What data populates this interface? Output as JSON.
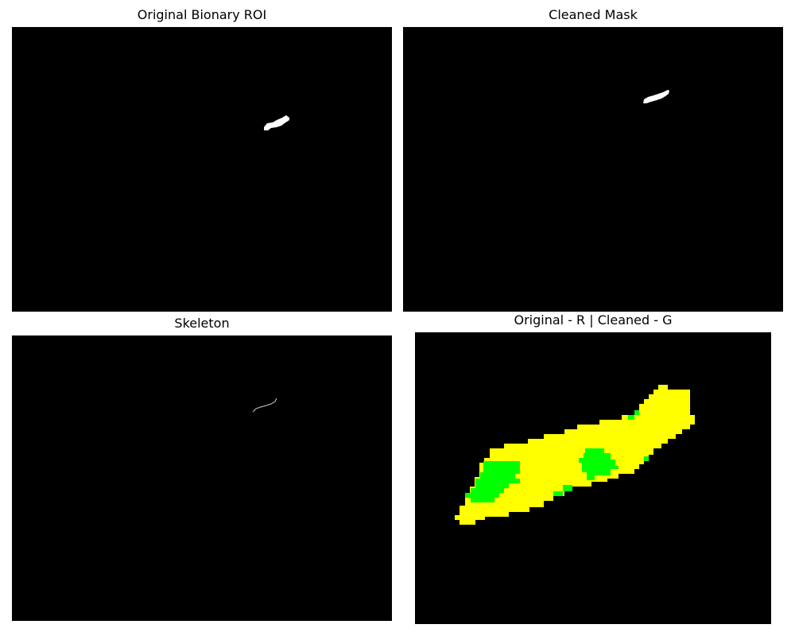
{
  "panels": {
    "original": {
      "title": "Original Bionary ROI"
    },
    "cleaned": {
      "title": "Cleaned Mask"
    },
    "skeleton": {
      "title": "Skeleton"
    },
    "overlay": {
      "title": "Original - R | Cleaned - G"
    }
  },
  "colors": {
    "background": "#000000",
    "mask": "#ffffff",
    "overlap": "#ffff00",
    "cleaned_only": "#00ff00",
    "skeleton": "#cccccc"
  }
}
